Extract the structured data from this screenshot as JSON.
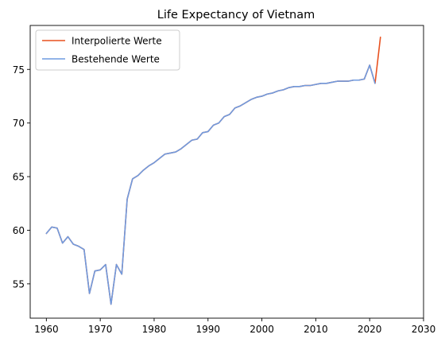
{
  "chart_data": {
    "type": "line",
    "title": "Life Expectancy of Vietnam",
    "xlabel": "",
    "ylabel": "",
    "xlim": [
      1957.0,
      2030.0
    ],
    "ylim": [
      51.8,
      79.1
    ],
    "xticks": [
      1960,
      1970,
      1980,
      1990,
      2000,
      2010,
      2020,
      2030
    ],
    "yticks": [
      55,
      60,
      65,
      70,
      75
    ],
    "grid": false,
    "legend_position": "top-left",
    "series": [
      {
        "name": "Interpolierte Werte",
        "color": "#e8511f",
        "x": [
          1960,
          1961,
          1962,
          1963,
          1964,
          1965,
          1966,
          1967,
          1968,
          1969,
          1970,
          1971,
          1972,
          1973,
          1974,
          1975,
          1976,
          1977,
          1978,
          1979,
          1980,
          1981,
          1982,
          1983,
          1984,
          1985,
          1986,
          1987,
          1988,
          1989,
          1990,
          1991,
          1992,
          1993,
          1994,
          1995,
          1996,
          1997,
          1998,
          1999,
          2000,
          2001,
          2002,
          2003,
          2004,
          2005,
          2006,
          2007,
          2008,
          2009,
          2010,
          2011,
          2012,
          2013,
          2014,
          2015,
          2016,
          2017,
          2018,
          2019,
          2020,
          2021,
          2022
        ],
        "y": [
          59.7,
          60.3,
          60.2,
          58.8,
          59.4,
          58.7,
          58.5,
          58.2,
          54.1,
          56.2,
          56.3,
          56.8,
          53.1,
          56.8,
          55.9,
          62.9,
          64.8,
          65.1,
          65.6,
          66.0,
          66.3,
          66.7,
          67.1,
          67.2,
          67.3,
          67.6,
          68.0,
          68.4,
          68.5,
          69.1,
          69.2,
          69.8,
          70.0,
          70.6,
          70.8,
          71.4,
          71.6,
          71.9,
          72.2,
          72.4,
          72.5,
          72.7,
          72.8,
          73.0,
          73.1,
          73.3,
          73.4,
          73.4,
          73.5,
          73.5,
          73.6,
          73.7,
          73.7,
          73.8,
          73.9,
          73.9,
          73.9,
          74.0,
          74.0,
          74.1,
          75.4,
          73.7,
          78.0
        ]
      },
      {
        "name": "Bestehende Werte",
        "color": "#6f9be0",
        "x": [
          1960,
          1961,
          1962,
          1963,
          1964,
          1965,
          1966,
          1967,
          1968,
          1969,
          1970,
          1971,
          1972,
          1973,
          1974,
          1975,
          1976,
          1977,
          1978,
          1979,
          1980,
          1981,
          1982,
          1983,
          1984,
          1985,
          1986,
          1987,
          1988,
          1989,
          1990,
          1991,
          1992,
          1993,
          1994,
          1995,
          1996,
          1997,
          1998,
          1999,
          2000,
          2001,
          2002,
          2003,
          2004,
          2005,
          2006,
          2007,
          2008,
          2009,
          2010,
          2011,
          2012,
          2013,
          2014,
          2015,
          2016,
          2017,
          2018,
          2019,
          2020,
          2021
        ],
        "y": [
          59.7,
          60.3,
          60.2,
          58.8,
          59.4,
          58.7,
          58.5,
          58.2,
          54.1,
          56.2,
          56.3,
          56.8,
          53.1,
          56.8,
          55.9,
          62.9,
          64.8,
          65.1,
          65.6,
          66.0,
          66.3,
          66.7,
          67.1,
          67.2,
          67.3,
          67.6,
          68.0,
          68.4,
          68.5,
          69.1,
          69.2,
          69.8,
          70.0,
          70.6,
          70.8,
          71.4,
          71.6,
          71.9,
          72.2,
          72.4,
          72.5,
          72.7,
          72.8,
          73.0,
          73.1,
          73.3,
          73.4,
          73.4,
          73.5,
          73.5,
          73.6,
          73.7,
          73.7,
          73.8,
          73.9,
          73.9,
          73.9,
          74.0,
          74.0,
          74.1,
          75.4,
          73.7
        ]
      }
    ]
  }
}
